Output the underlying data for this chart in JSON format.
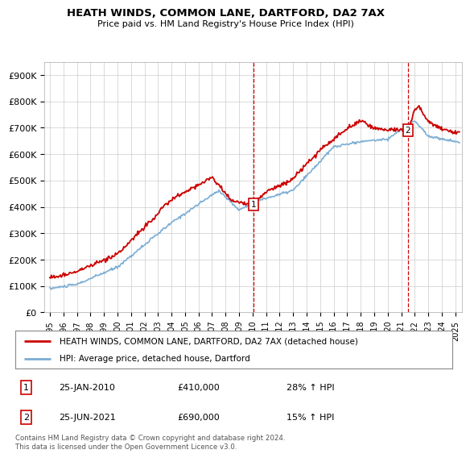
{
  "title": "HEATH WINDS, COMMON LANE, DARTFORD, DA2 7AX",
  "subtitle": "Price paid vs. HM Land Registry's House Price Index (HPI)",
  "ylabel_ticks": [
    "£0",
    "£100K",
    "£200K",
    "£300K",
    "£400K",
    "£500K",
    "£600K",
    "£700K",
    "£800K",
    "£900K"
  ],
  "ytick_values": [
    0,
    100000,
    200000,
    300000,
    400000,
    500000,
    600000,
    700000,
    800000,
    900000
  ],
  "ylim": [
    0,
    950000
  ],
  "xlim_start": 1994.6,
  "xlim_end": 2025.5,
  "marker1_x": 2010.07,
  "marker1_y": 410000,
  "marker1_label": "1",
  "marker2_x": 2021.48,
  "marker2_y": 690000,
  "marker2_label": "2",
  "annotation1": [
    "1",
    "25-JAN-2010",
    "£410,000",
    "28% ↑ HPI"
  ],
  "annotation2": [
    "2",
    "25-JUN-2021",
    "£690,000",
    "15% ↑ HPI"
  ],
  "legend_line1": "HEATH WINDS, COMMON LANE, DARTFORD, DA2 7AX (detached house)",
  "legend_line2": "HPI: Average price, detached house, Dartford",
  "footer": "Contains HM Land Registry data © Crown copyright and database right 2024.\nThis data is licensed under the Open Government Licence v3.0.",
  "red_color": "#cc0000",
  "blue_color": "#7aadd4",
  "background_color": "#ffffff",
  "grid_color": "#cccccc"
}
